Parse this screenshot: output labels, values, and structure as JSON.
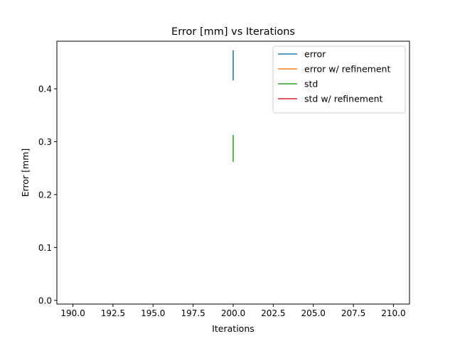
{
  "chart_data": {
    "type": "line",
    "title": "Error [mm] vs Iterations",
    "xlabel": "Iterations",
    "ylabel": "Error [mm]",
    "xlim": [
      189.0,
      211.0
    ],
    "ylim": [
      -0.007,
      0.49
    ],
    "x_ticks": [
      190.0,
      192.5,
      195.0,
      197.5,
      200.0,
      202.5,
      205.0,
      207.5,
      210.0
    ],
    "x_tick_labels": [
      "190.0",
      "192.5",
      "195.0",
      "197.5",
      "200.0",
      "202.5",
      "205.0",
      "207.5",
      "210.0"
    ],
    "y_ticks": [
      0.0,
      0.1,
      0.2,
      0.3,
      0.4
    ],
    "y_tick_labels": [
      "0.0",
      "0.1",
      "0.2",
      "0.3",
      "0.4"
    ],
    "grid": false,
    "legend_position": "top-right",
    "series": [
      {
        "name": "error",
        "color": "#1f77b4",
        "points": [
          [
            200,
            0.416
          ],
          [
            200,
            0.473
          ]
        ]
      },
      {
        "name": "error w/ refinement",
        "color": "#ff7f0e",
        "points": []
      },
      {
        "name": "std",
        "color": "#2ca02c",
        "points": [
          [
            200,
            0.262
          ],
          [
            200,
            0.313
          ]
        ]
      },
      {
        "name": "std w/ refinement",
        "color": "#d62728",
        "points": []
      }
    ]
  }
}
